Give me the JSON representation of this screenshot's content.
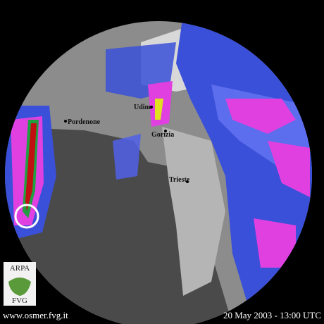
{
  "map": {
    "places": [
      "Pordenone",
      "Udine",
      "Gorizia",
      "Trieste"
    ]
  },
  "logo": {
    "name": "ARPA",
    "region": "FVG"
  },
  "footer": {
    "url": "www.osmer.fvg.it",
    "timestamp": "20 May 2003 - 13:00 UTC"
  }
}
